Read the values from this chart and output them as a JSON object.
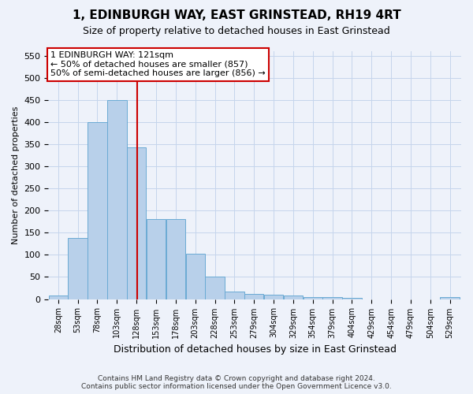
{
  "title": "1, EDINBURGH WAY, EAST GRINSTEAD, RH19 4RT",
  "subtitle": "Size of property relative to detached houses in East Grinstead",
  "xlabel": "Distribution of detached houses by size in East Grinstead",
  "ylabel": "Number of detached properties",
  "footer_line1": "Contains HM Land Registry data © Crown copyright and database right 2024.",
  "footer_line2": "Contains public sector information licensed under the Open Government Licence v3.0.",
  "annotation_line1": "1 EDINBURGH WAY: 121sqm",
  "annotation_line2": "← 50% of detached houses are smaller (857)",
  "annotation_line3": "50% of semi-detached houses are larger (856) →",
  "bar_color": "#b8d0ea",
  "bar_edge_color": "#6aaad4",
  "vline_color": "#cc0000",
  "background_color": "#eef2fa",
  "grid_color": "#c5d5ec",
  "categories": [
    "28sqm",
    "53sqm",
    "78sqm",
    "103sqm",
    "128sqm",
    "153sqm",
    "178sqm",
    "203sqm",
    "228sqm",
    "253sqm",
    "279sqm",
    "304sqm",
    "329sqm",
    "354sqm",
    "379sqm",
    "404sqm",
    "429sqm",
    "454sqm",
    "479sqm",
    "504sqm",
    "529sqm"
  ],
  "values": [
    8,
    138,
    400,
    450,
    342,
    180,
    180,
    103,
    50,
    17,
    12,
    10,
    8,
    4,
    4,
    2,
    0,
    0,
    0,
    0,
    4
  ],
  "bin_width": 25,
  "bin_starts": [
    15,
    40,
    65,
    90,
    115,
    140,
    165,
    190,
    215,
    240,
    265,
    290,
    315,
    340,
    365,
    390,
    415,
    440,
    465,
    490,
    515
  ],
  "vline_x": 128,
  "xlim": [
    15,
    542
  ],
  "ylim": [
    0,
    560
  ],
  "yticks": [
    0,
    50,
    100,
    150,
    200,
    250,
    300,
    350,
    400,
    450,
    500,
    550
  ]
}
